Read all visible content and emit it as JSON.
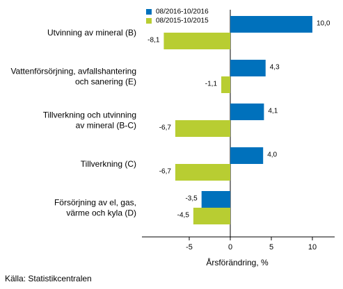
{
  "chart_data": {
    "type": "bar",
    "orientation": "horizontal",
    "categories": [
      [
        "Utvinning av mineral (B)"
      ],
      [
        "Vattenförsörjning, avfallshantering",
        "och sanering (E)"
      ],
      [
        "Tillverkning och utvinning",
        "av mineral (B-C)"
      ],
      [
        "Tillverkning (C)"
      ],
      [
        "Försörjning av el, gas,",
        "värme och kyla (D)"
      ]
    ],
    "series": [
      {
        "name": "08/2016-10/2016",
        "color": "#0071bc",
        "values": [
          10.0,
          4.3,
          4.1,
          4.0,
          -3.5
        ],
        "labels": [
          "10,0",
          "4,3",
          "4,1",
          "4,0",
          "-3,5"
        ]
      },
      {
        "name": "08/2015-10/2015",
        "color": "#b8cd32",
        "values": [
          -8.1,
          -1.1,
          -6.7,
          -6.7,
          -4.5
        ],
        "labels": [
          "-8,1",
          "-1,1",
          "-6,7",
          "-6,7",
          "-4,5"
        ]
      }
    ],
    "xlim": [
      -10.7,
      12.9
    ],
    "xticks": [
      -5,
      0,
      5,
      10
    ],
    "xtick_labels": [
      "-5",
      "0",
      "5",
      "10"
    ],
    "xlabel": "Årsförändring, %",
    "legend_position": "top-left",
    "grid": false
  },
  "source": "Källa: Statistikcentralen"
}
